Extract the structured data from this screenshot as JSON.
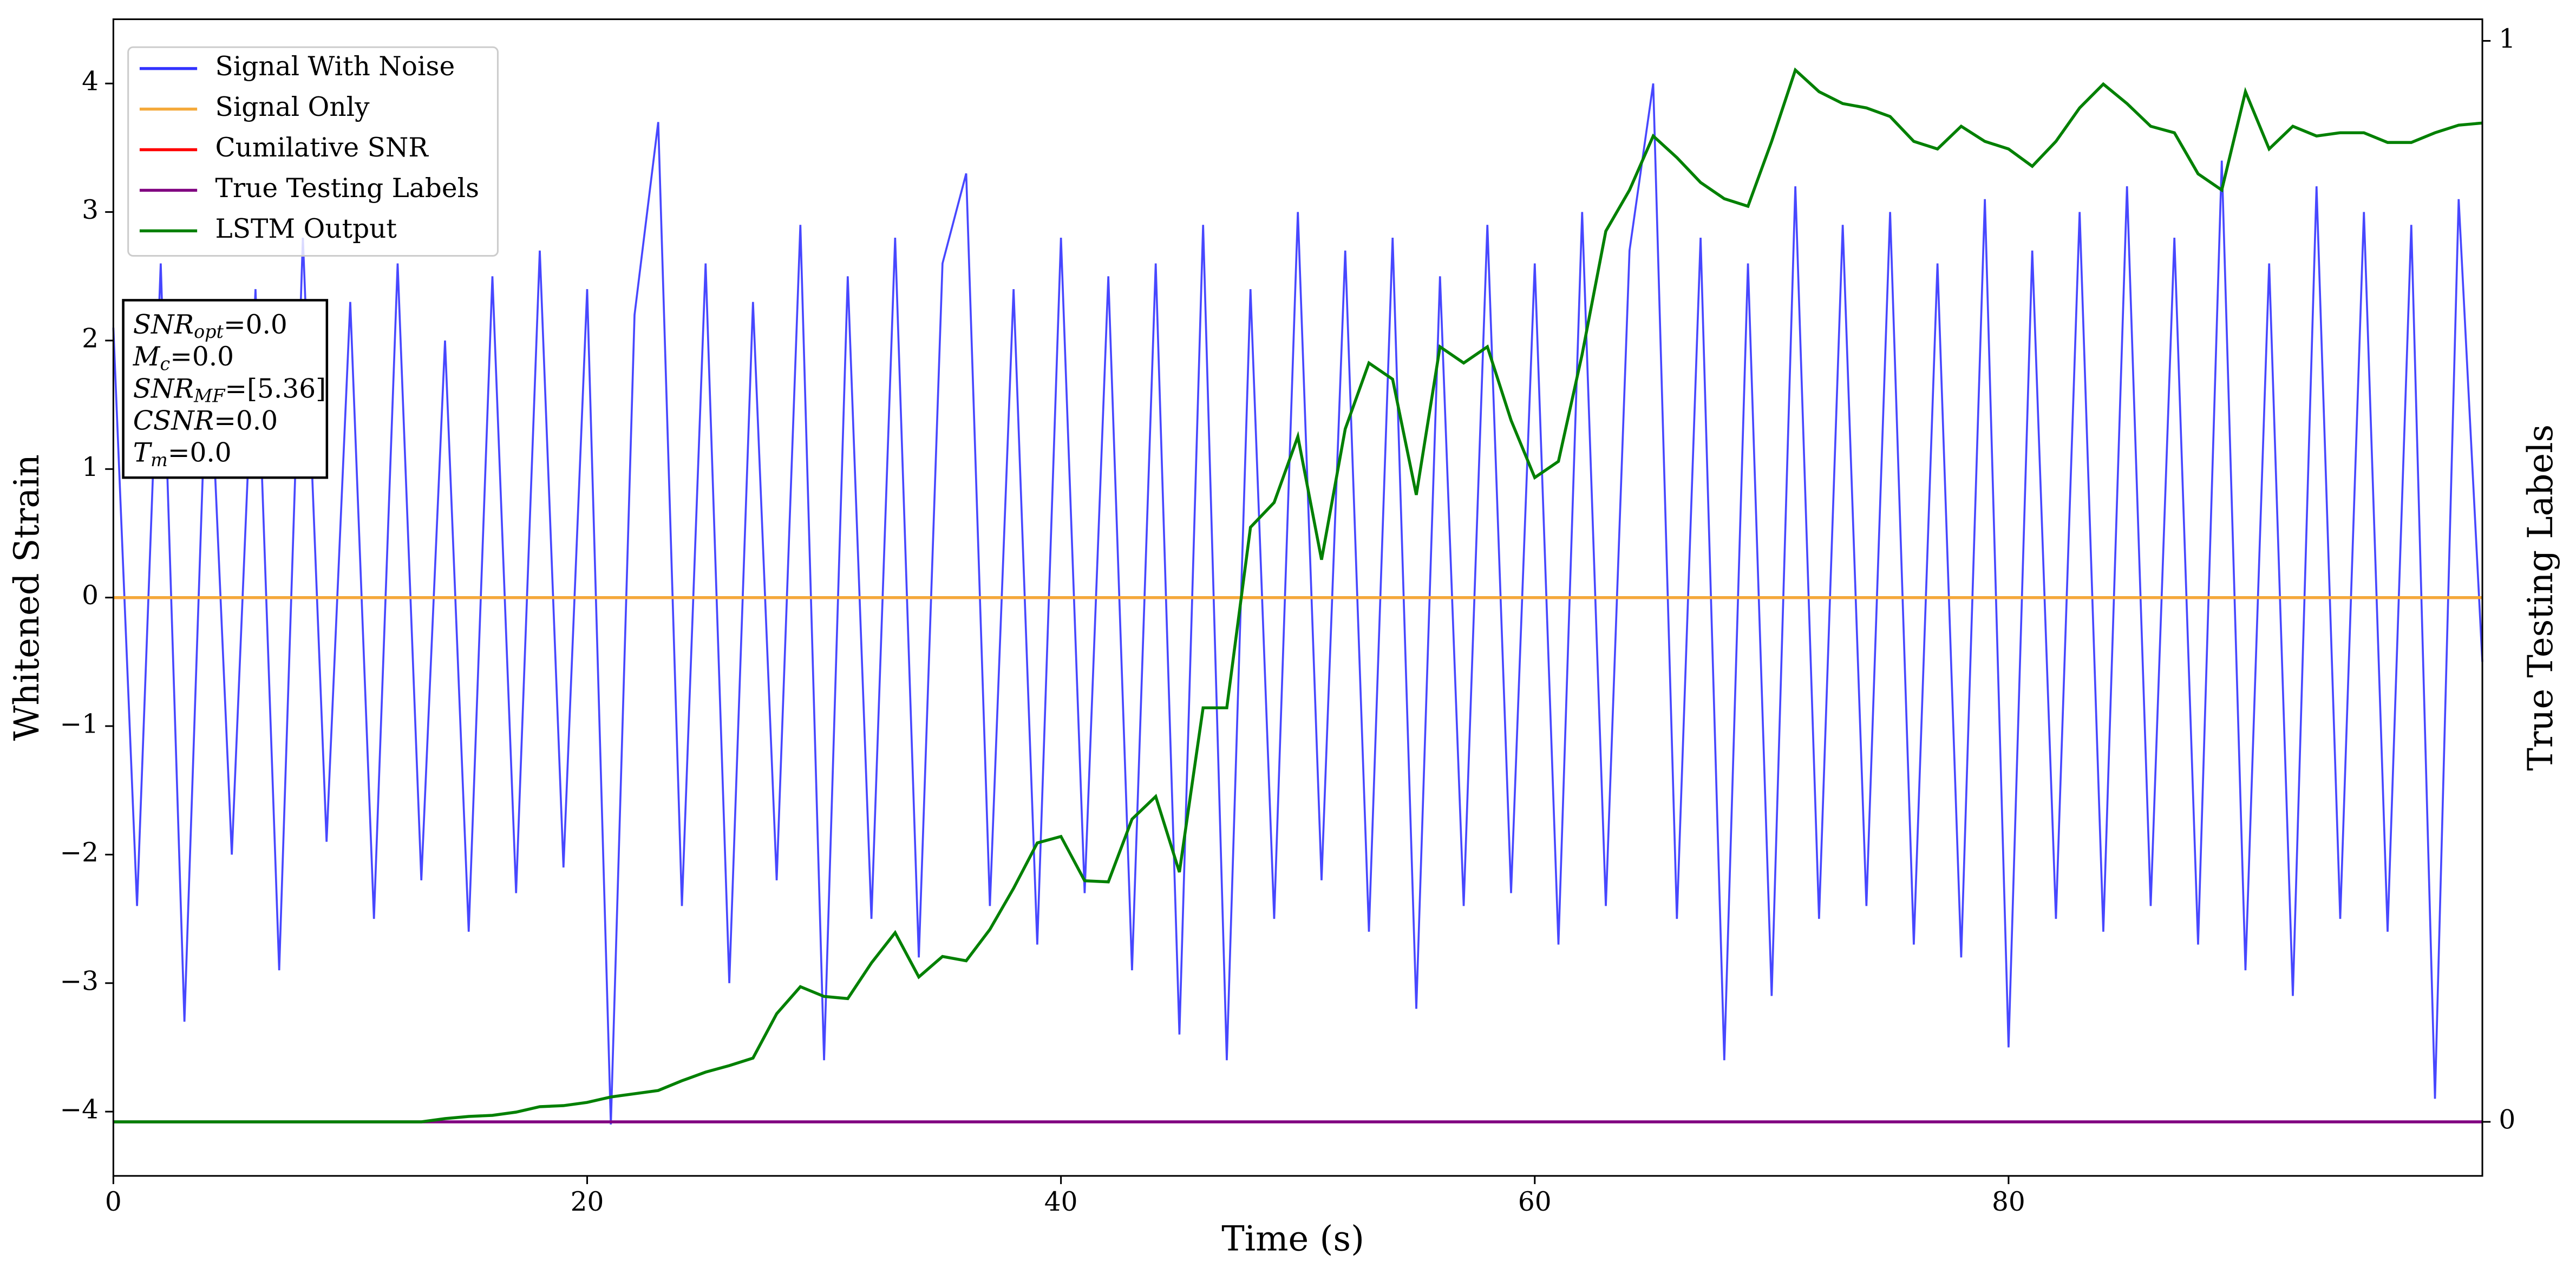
{
  "chart_data": {
    "type": "line",
    "xlabel": "Time (s)",
    "ylabel": "Whitened Strain",
    "y2label": "True Testing Labels",
    "xlim": [
      0,
      100
    ],
    "ylim": [
      -4.5,
      4.5
    ],
    "y2lim": [
      -0.05,
      1.02
    ],
    "xticks": [
      0,
      20,
      40,
      60,
      80
    ],
    "yticks": [
      {
        "value": -4,
        "label": "−4"
      },
      {
        "value": -3,
        "label": "−3"
      },
      {
        "value": -2,
        "label": "−2"
      },
      {
        "value": -1,
        "label": "−1"
      },
      0,
      1,
      2,
      3,
      4
    ],
    "y2ticks": [
      0,
      1
    ],
    "legend": "upper left",
    "x": [
      0,
      1,
      2,
      3,
      4,
      5,
      6,
      7,
      8,
      9,
      10,
      11,
      12,
      13,
      14,
      15,
      16,
      17,
      18,
      19,
      20,
      21,
      22,
      23,
      24,
      25,
      26,
      27,
      28,
      29,
      30,
      31,
      32,
      33,
      34,
      35,
      36,
      37,
      38,
      39,
      40,
      41,
      42,
      43,
      44,
      45,
      46,
      47,
      48,
      49,
      50,
      51,
      52,
      53,
      54,
      55,
      56,
      57,
      58,
      59,
      60,
      61,
      62,
      63,
      64,
      65,
      66,
      67,
      68,
      69,
      70,
      71,
      72,
      73,
      74,
      75,
      76,
      77,
      78,
      79,
      80,
      81,
      82,
      83,
      84,
      85,
      86,
      87,
      88,
      89,
      90,
      91,
      92,
      93,
      94,
      95,
      96,
      97,
      98,
      99,
      100
    ],
    "series": [
      {
        "name": "Signal With Noise",
        "color": "#3333ff",
        "axis": "y",
        "values": [
          2.1,
          -2.4,
          2.6,
          -3.3,
          2.2,
          -2.0,
          2.4,
          -2.9,
          2.8,
          -1.9,
          2.3,
          -2.5,
          2.6,
          -2.2,
          2.0,
          -2.6,
          2.5,
          -2.3,
          2.7,
          -2.1,
          2.4,
          -4.1,
          2.2,
          3.7,
          -2.4,
          2.6,
          -3.0,
          2.3,
          -2.2,
          2.9,
          -3.6,
          2.5,
          -2.5,
          2.8,
          -2.8,
          2.6,
          3.3,
          -2.4,
          2.4,
          -2.7,
          2.8,
          -2.3,
          2.5,
          -2.9,
          2.6,
          -3.4,
          2.9,
          -3.6,
          2.4,
          -2.5,
          3.0,
          -2.2,
          2.7,
          -2.6,
          2.8,
          -3.2,
          2.5,
          -2.4,
          2.9,
          -2.3,
          2.6,
          -2.7,
          3.0,
          -2.4,
          2.7,
          4.0,
          -2.5,
          2.8,
          -3.6,
          2.6,
          -3.1,
          3.2,
          -2.5,
          2.9,
          -2.4,
          3.0,
          -2.7,
          2.6,
          -2.8,
          3.1,
          -3.5,
          2.7,
          -2.5,
          3.0,
          -2.6,
          3.2,
          -2.4,
          2.8,
          -2.7,
          3.4,
          -2.9,
          2.6,
          -3.1,
          3.2,
          -2.5,
          3.0,
          -2.6,
          2.9,
          -3.9,
          3.1,
          -0.5
        ]
      },
      {
        "name": "Signal Only",
        "color": "#f4a93a",
        "axis": "y",
        "values": [
          0,
          0,
          0,
          0,
          0,
          0,
          0,
          0,
          0,
          0,
          0,
          0,
          0,
          0,
          0,
          0,
          0,
          0,
          0,
          0,
          0,
          0,
          0,
          0,
          0,
          0,
          0,
          0,
          0,
          0,
          0,
          0,
          0,
          0,
          0,
          0,
          0,
          0,
          0,
          0,
          0,
          0,
          0,
          0,
          0,
          0,
          0,
          0,
          0,
          0,
          0,
          0,
          0,
          0,
          0,
          0,
          0,
          0,
          0,
          0,
          0,
          0,
          0,
          0,
          0,
          0,
          0,
          0,
          0,
          0,
          0,
          0,
          0,
          0,
          0,
          0,
          0,
          0,
          0,
          0,
          0,
          0,
          0,
          0,
          0,
          0,
          0,
          0,
          0,
          0,
          0,
          0,
          0,
          0,
          0,
          0,
          0,
          0,
          0,
          0,
          0
        ]
      },
      {
        "name": "Cumilative SNR",
        "color": "#ff0000",
        "axis": "y",
        "values": [
          0,
          0,
          0,
          0,
          0,
          0,
          0,
          0,
          0,
          0,
          0,
          0,
          0,
          0,
          0,
          0,
          0,
          0,
          0,
          0,
          0,
          0,
          0,
          0,
          0,
          0,
          0,
          0,
          0,
          0,
          0,
          0,
          0,
          0,
          0,
          0,
          0,
          0,
          0,
          0,
          0,
          0,
          0,
          0,
          0,
          0,
          0,
          0,
          0,
          0,
          0,
          0,
          0,
          0,
          0,
          0,
          0,
          0,
          0,
          0,
          0,
          0,
          0,
          0,
          0,
          0,
          0,
          0,
          0,
          0,
          0,
          0,
          0,
          0,
          0,
          0,
          0,
          0,
          0,
          0,
          0,
          0,
          0,
          0,
          0,
          0,
          0,
          0,
          0,
          0,
          0,
          0,
          0,
          0,
          0,
          0,
          0,
          0,
          0,
          0,
          0
        ]
      },
      {
        "name": "True Testing Labels",
        "color": "#800080",
        "axis": "y2",
        "values": [
          0,
          0,
          0,
          0,
          0,
          0,
          0,
          0,
          0,
          0,
          0,
          0,
          0,
          0,
          0,
          0,
          0,
          0,
          0,
          0,
          0,
          0,
          0,
          0,
          0,
          0,
          0,
          0,
          0,
          0,
          0,
          0,
          0,
          0,
          0,
          0,
          0,
          0,
          0,
          0,
          0,
          0,
          0,
          0,
          0,
          0,
          0,
          0,
          0,
          0,
          0,
          0,
          0,
          0,
          0,
          0,
          0,
          0,
          0,
          0,
          0,
          0,
          0,
          0,
          0,
          0,
          0,
          0,
          0,
          0,
          0,
          0,
          0,
          0,
          0,
          0,
          0,
          0,
          0,
          0,
          0,
          0,
          0,
          0,
          0,
          0,
          0,
          0,
          0,
          0,
          0,
          0,
          0,
          0,
          0,
          0,
          0,
          0,
          0,
          0,
          0
        ]
      },
      {
        "name": "LSTM Output",
        "color": "#008000",
        "axis": "y2",
        "values": [
          0,
          0,
          0,
          0,
          0,
          0,
          0,
          0,
          0,
          0,
          0,
          0,
          0,
          0,
          0.003,
          0.005,
          0.006,
          0.009,
          0.014,
          0.015,
          0.018,
          0.023,
          0.026,
          0.029,
          0.038,
          0.046,
          0.052,
          0.059,
          0.1,
          0.125,
          0.116,
          0.114,
          0.147,
          0.175,
          0.134,
          0.153,
          0.149,
          0.178,
          0.216,
          0.258,
          0.264,
          0.223,
          0.222,
          0.28,
          0.301,
          0.231,
          0.383,
          0.383,
          0.55,
          0.573,
          0.634,
          0.52,
          0.641,
          0.702,
          0.687,
          0.58,
          0.717,
          0.702,
          0.717,
          0.649,
          0.596,
          0.611,
          0.71,
          0.824,
          0.862,
          0.912,
          0.892,
          0.869,
          0.854,
          0.847,
          0.907,
          0.973,
          0.953,
          0.942,
          0.938,
          0.93,
          0.907,
          0.9,
          0.921,
          0.907,
          0.9,
          0.884,
          0.907,
          0.938,
          0.96,
          0.942,
          0.921,
          0.915,
          0.877,
          0.862,
          0.953,
          0.9,
          0.921,
          0.912,
          0.915,
          0.915,
          0.906,
          0.906,
          0.915,
          0.922,
          0.924
        ]
      }
    ],
    "annotation": [
      {
        "symbol": "SNR",
        "subscript": "opt",
        "value": "=0.0"
      },
      {
        "symbol": "M",
        "subscript": "c",
        "value": "=0.0"
      },
      {
        "symbol": "SNR",
        "subscript": "MF",
        "value": "=[5.36]"
      },
      {
        "symbol": "CSNR",
        "value": "=0.0"
      },
      {
        "symbol": "T",
        "subscript": "m",
        "value": "=0.0"
      }
    ]
  }
}
